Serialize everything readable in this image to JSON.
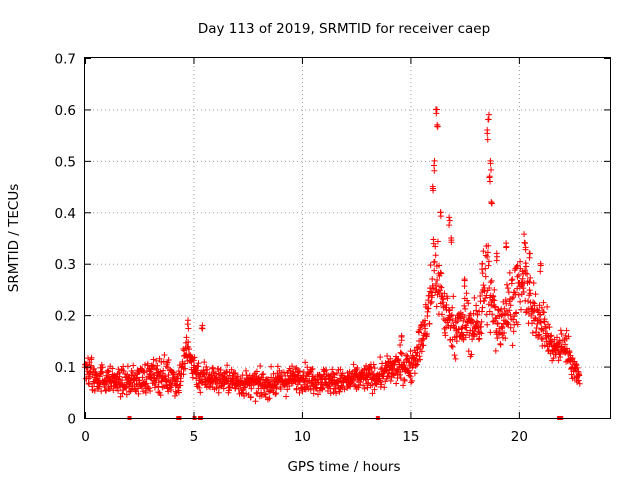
{
  "chart_data": {
    "type": "scatter",
    "title": "Day 113 of 2019, SRMTID for receiver caep",
    "xlabel": "GPS time / hours",
    "ylabel": "SRMTID / TECUs",
    "xlim": [
      0,
      24.2
    ],
    "ylim": [
      0,
      0.7
    ],
    "xticks": [
      0,
      5,
      10,
      15,
      20
    ],
    "xtick_labels": [
      "0",
      "5",
      "10",
      "15",
      "20"
    ],
    "yticks": [
      0,
      0.1,
      0.2,
      0.3,
      0.4,
      0.5,
      0.6,
      0.7
    ],
    "ytick_labels": [
      "0",
      "0.1",
      "0.2",
      "0.3",
      "0.4",
      "0.5",
      "0.6",
      "0.7"
    ],
    "grid": true,
    "marker": "+",
    "color": "#ff0000",
    "series": [
      {
        "name": "SRMTID",
        "envelope_hours": [
          0,
          0.5,
          1,
          1.5,
          2,
          2.5,
          3,
          3.5,
          4,
          4.3,
          4.7,
          5,
          5.3,
          5.7,
          6,
          6.5,
          7,
          7.5,
          8,
          8.5,
          9,
          9.5,
          10,
          10.5,
          11,
          11.5,
          12,
          12.5,
          13,
          13.5,
          14,
          14.5,
          15,
          15.3,
          15.6,
          15.9,
          16.1,
          16.3,
          16.6,
          17,
          17.3,
          17.6,
          17.9,
          18.2,
          18.5,
          18.7,
          19,
          19.3,
          19.6,
          20,
          20.3,
          20.6,
          21,
          21.3,
          21.6,
          21.9,
          22.2,
          22.5,
          22.8
        ],
        "envelope_mean": [
          0.09,
          0.08,
          0.075,
          0.07,
          0.07,
          0.075,
          0.08,
          0.085,
          0.08,
          0.07,
          0.13,
          0.1,
          0.08,
          0.08,
          0.075,
          0.075,
          0.07,
          0.065,
          0.065,
          0.065,
          0.07,
          0.075,
          0.08,
          0.075,
          0.075,
          0.07,
          0.07,
          0.075,
          0.08,
          0.08,
          0.09,
          0.1,
          0.1,
          0.13,
          0.16,
          0.22,
          0.3,
          0.27,
          0.2,
          0.18,
          0.17,
          0.19,
          0.17,
          0.2,
          0.28,
          0.23,
          0.18,
          0.2,
          0.22,
          0.25,
          0.27,
          0.2,
          0.2,
          0.16,
          0.13,
          0.14,
          0.14,
          0.1,
          0.08
        ],
        "envelope_spread": [
          0.03,
          0.03,
          0.025,
          0.025,
          0.025,
          0.03,
          0.03,
          0.035,
          0.035,
          0.03,
          0.04,
          0.03,
          0.03,
          0.03,
          0.025,
          0.025,
          0.025,
          0.025,
          0.025,
          0.025,
          0.025,
          0.025,
          0.025,
          0.025,
          0.025,
          0.025,
          0.025,
          0.025,
          0.025,
          0.025,
          0.03,
          0.03,
          0.03,
          0.035,
          0.04,
          0.06,
          0.1,
          0.08,
          0.05,
          0.05,
          0.05,
          0.06,
          0.05,
          0.06,
          0.1,
          0.07,
          0.05,
          0.06,
          0.07,
          0.06,
          0.07,
          0.05,
          0.05,
          0.04,
          0.03,
          0.03,
          0.03,
          0.025,
          0.02
        ],
        "peaks": [
          {
            "hour": 16.2,
            "value": 0.6
          },
          {
            "hour": 16.25,
            "value": 0.57
          },
          {
            "hour": 16.1,
            "value": 0.5
          },
          {
            "hour": 16.05,
            "value": 0.45
          },
          {
            "hour": 16.4,
            "value": 0.4
          },
          {
            "hour": 16.8,
            "value": 0.39
          },
          {
            "hour": 16.9,
            "value": 0.35
          },
          {
            "hour": 18.6,
            "value": 0.59
          },
          {
            "hour": 18.55,
            "value": 0.56
          },
          {
            "hour": 18.7,
            "value": 0.5
          },
          {
            "hour": 18.65,
            "value": 0.47
          },
          {
            "hour": 18.75,
            "value": 0.42
          },
          {
            "hour": 19.0,
            "value": 0.32
          },
          {
            "hour": 19.4,
            "value": 0.34
          },
          {
            "hour": 20.3,
            "value": 0.34
          },
          {
            "hour": 20.5,
            "value": 0.32
          },
          {
            "hour": 21.0,
            "value": 0.3
          },
          {
            "hour": 4.75,
            "value": 0.19
          },
          {
            "hour": 5.4,
            "value": 0.18
          },
          {
            "hour": 14.6,
            "value": 0.16
          },
          {
            "hour": 17.5,
            "value": 0.27
          },
          {
            "hour": 18.3,
            "value": 0.3
          }
        ],
        "zero_points": [
          2.05,
          4.3,
          4.35,
          5.05,
          5.3,
          5.35,
          13.5,
          21.85,
          21.9,
          21.95
        ]
      }
    ]
  }
}
